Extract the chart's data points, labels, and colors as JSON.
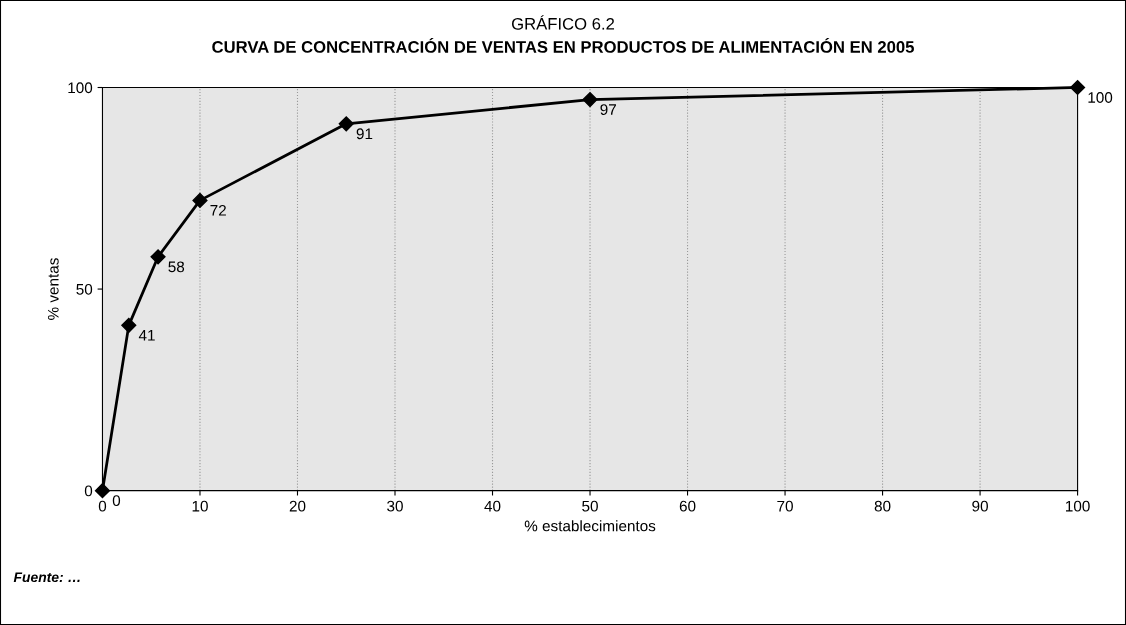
{
  "chart_data": {
    "type": "line",
    "title": "GRÁFICO 6.2",
    "subtitle": "CURVA DE CONCENTRACIÓN DE VENTAS EN PRODUCTOS DE ALIMENTACIÓN EN 2005",
    "xlabel": "% establecimientos",
    "ylabel": "% ventas",
    "x": [
      0,
      2.7,
      5.7,
      10,
      25,
      50,
      100
    ],
    "series": [
      {
        "color": "#000000",
        "values": [
          0,
          41,
          58,
          72,
          91,
          97,
          100
        ]
      }
    ],
    "data_labels": true,
    "marker": "diamond",
    "line_style": "solid",
    "xlim": [
      0,
      100
    ],
    "xticks": [
      0,
      10,
      20,
      30,
      40,
      50,
      60,
      70,
      80,
      90,
      100
    ],
    "ylim": [
      0,
      100
    ],
    "yticks": [
      0,
      50,
      100
    ],
    "grid": "x",
    "legend": false,
    "annotations": [
      "Fuente: …"
    ]
  }
}
